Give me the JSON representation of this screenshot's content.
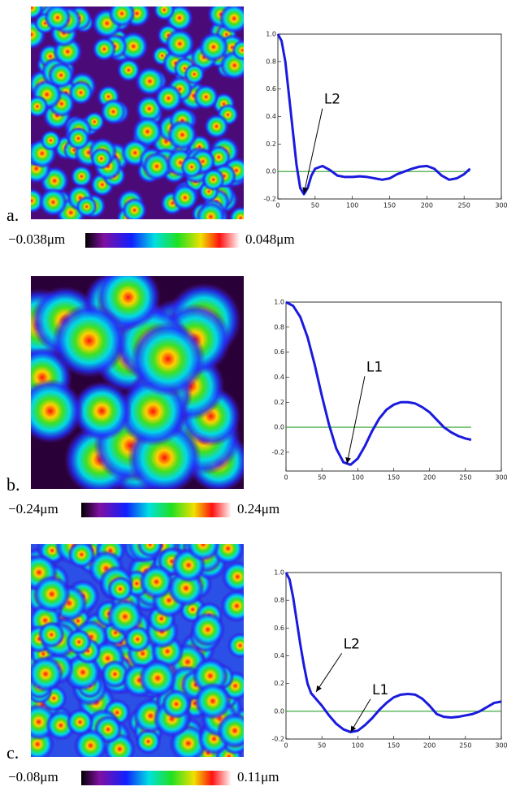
{
  "chart_data": [
    {
      "type": "line",
      "panel_label": "a.",
      "colorbar_labels": [
        "−0.038μm",
        "0.048μm"
      ],
      "x": [
        0,
        5,
        10,
        15,
        20,
        25,
        30,
        35,
        40,
        45,
        50,
        60,
        70,
        80,
        90,
        100,
        110,
        120,
        130,
        140,
        150,
        160,
        170,
        180,
        190,
        200,
        210,
        220,
        230,
        240,
        250,
        258
      ],
      "series": [
        {
          "color": "#1a1adf",
          "values": [
            1.0,
            0.95,
            0.8,
            0.55,
            0.3,
            0.05,
            -0.12,
            -0.165,
            -0.12,
            -0.03,
            0.02,
            0.04,
            0.01,
            -0.03,
            -0.04,
            -0.04,
            -0.035,
            -0.04,
            -0.05,
            -0.06,
            -0.05,
            -0.02,
            0.0,
            0.02,
            0.035,
            0.04,
            0.02,
            -0.03,
            -0.06,
            -0.05,
            -0.02,
            0.02
          ]
        }
      ],
      "xlim": [
        0,
        300
      ],
      "ylim": [
        -0.2,
        1.0
      ],
      "xticks": [
        0,
        50,
        100,
        150,
        200,
        250,
        300
      ],
      "yticks": [
        -0.2,
        {
          "value": 0,
          "label": "0.0"
        },
        0.2,
        0.4,
        0.6,
        0.8,
        {
          "value": 1,
          "label": "1.0"
        }
      ],
      "hline": 0,
      "hline_color": "#2ca02c",
      "annotations": [
        {
          "text": "L2",
          "x": 35,
          "y": -0.16,
          "text_x": 62,
          "text_y": 0.47
        }
      ]
    },
    {
      "type": "line",
      "panel_label": "b.",
      "colorbar_labels": [
        "−0.24μm",
        "0.24μm"
      ],
      "x": [
        0,
        10,
        20,
        30,
        40,
        50,
        60,
        70,
        80,
        90,
        100,
        110,
        120,
        130,
        140,
        150,
        160,
        170,
        180,
        190,
        200,
        210,
        220,
        230,
        240,
        250,
        258
      ],
      "series": [
        {
          "color": "#1a1adf",
          "values": [
            1.0,
            0.97,
            0.88,
            0.72,
            0.5,
            0.25,
            0.02,
            -0.17,
            -0.28,
            -0.3,
            -0.25,
            -0.15,
            -0.03,
            0.07,
            0.14,
            0.18,
            0.2,
            0.2,
            0.19,
            0.16,
            0.12,
            0.06,
            0.0,
            -0.04,
            -0.07,
            -0.09,
            -0.1
          ]
        }
      ],
      "xlim": [
        0,
        300
      ],
      "ylim": [
        -0.35,
        1.0
      ],
      "xticks": [
        0,
        50,
        100,
        150,
        200,
        250,
        300
      ],
      "yticks": [
        -0.2,
        {
          "value": 0,
          "label": "0.0"
        },
        0.2,
        0.4,
        0.6,
        0.8,
        {
          "value": 1,
          "label": "1.0"
        }
      ],
      "hline": 0,
      "hline_color": "#2ca02c",
      "annotations": [
        {
          "text": "L1",
          "x": 85,
          "y": -0.29,
          "text_x": 112,
          "text_y": 0.42
        }
      ]
    },
    {
      "type": "line",
      "panel_label": "c.",
      "colorbar_labels": [
        "−0.08μm",
        "0.11μm"
      ],
      "x": [
        0,
        5,
        10,
        15,
        20,
        25,
        30,
        35,
        40,
        50,
        60,
        70,
        80,
        90,
        100,
        110,
        120,
        130,
        140,
        150,
        160,
        170,
        180,
        190,
        200,
        210,
        220,
        230,
        240,
        250,
        260,
        270,
        280,
        290,
        300
      ],
      "series": [
        {
          "color": "#1a1adf",
          "values": [
            1.0,
            0.95,
            0.82,
            0.65,
            0.48,
            0.33,
            0.2,
            0.13,
            0.1,
            0.04,
            -0.03,
            -0.09,
            -0.13,
            -0.15,
            -0.14,
            -0.1,
            -0.05,
            0.01,
            0.06,
            0.1,
            0.12,
            0.125,
            0.12,
            0.09,
            0.04,
            -0.02,
            -0.04,
            -0.045,
            -0.04,
            -0.03,
            -0.02,
            0.0,
            0.03,
            0.06,
            0.07
          ]
        }
      ],
      "xlim": [
        0,
        300
      ],
      "ylim": [
        -0.2,
        1.0
      ],
      "xticks": [
        0,
        50,
        100,
        150,
        200,
        250,
        300
      ],
      "yticks": [
        -0.2,
        {
          "value": 0,
          "label": "0.0"
        },
        0.2,
        0.4,
        0.6,
        0.8,
        {
          "value": 1,
          "label": "1.0"
        }
      ],
      "hline": 0,
      "hline_color": "#2ca02c",
      "annotations": [
        {
          "text": "L2",
          "x": 42,
          "y": 0.14,
          "text_x": 80,
          "text_y": 0.43
        },
        {
          "text": "L1",
          "x": 90,
          "y": -0.15,
          "text_x": 120,
          "text_y": 0.1
        }
      ]
    }
  ]
}
